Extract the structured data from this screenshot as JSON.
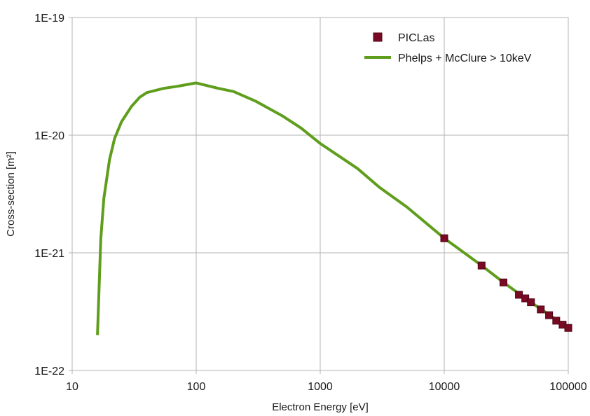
{
  "chart_data": {
    "type": "line",
    "xscale": "log",
    "yscale": "log",
    "xlim": [
      10,
      100000
    ],
    "ylim": [
      1e-22,
      1e-19
    ],
    "xlabel": "Electron Energy [eV]",
    "ylabel": "Cross-section [m²]",
    "xticks": [
      10,
      100,
      1000,
      10000,
      100000
    ],
    "xtick_labels": [
      "10",
      "100",
      "1000",
      "10000",
      "100000"
    ],
    "yticks": [
      1e-22,
      1e-21,
      1e-20,
      1e-19
    ],
    "ytick_labels": [
      "1E-22",
      "1E-21",
      "1E-20",
      "1E-19"
    ],
    "grid": true,
    "legend_position": "top-right",
    "series": [
      {
        "name": "PICLas",
        "kind": "markers",
        "marker": "square",
        "color": "#7a0a23",
        "x": [
          10000,
          20000,
          30000,
          40000,
          45000,
          50000,
          60000,
          70000,
          80000,
          90000,
          100000
        ],
        "y": [
          1.33e-21,
          7.8e-22,
          5.6e-22,
          4.4e-22,
          4.1e-22,
          3.8e-22,
          3.3e-22,
          2.95e-22,
          2.65e-22,
          2.45e-22,
          2.3e-22
        ]
      },
      {
        "name": "Phelps + McClure > 10keV",
        "kind": "line",
        "color": "#5f9e1c",
        "x": [
          16,
          17,
          18,
          20,
          22,
          25,
          30,
          35,
          40,
          55,
          70,
          100,
          150,
          200,
          300,
          500,
          700,
          1000,
          2000,
          3000,
          5000,
          10000,
          20000,
          30000,
          50000,
          100000
        ],
        "y": [
          2e-22,
          1.3e-21,
          2.9e-21,
          6.2e-21,
          9.4e-21,
          1.3e-20,
          1.75e-20,
          2.1e-20,
          2.3e-20,
          2.5e-20,
          2.6e-20,
          2.78e-20,
          2.5e-20,
          2.35e-20,
          1.95e-20,
          1.45e-20,
          1.15e-20,
          8.5e-21,
          5.2e-21,
          3.6e-21,
          2.45e-21,
          1.33e-21,
          7.8e-22,
          5.6e-22,
          3.8e-22,
          2.3e-22
        ]
      }
    ]
  }
}
